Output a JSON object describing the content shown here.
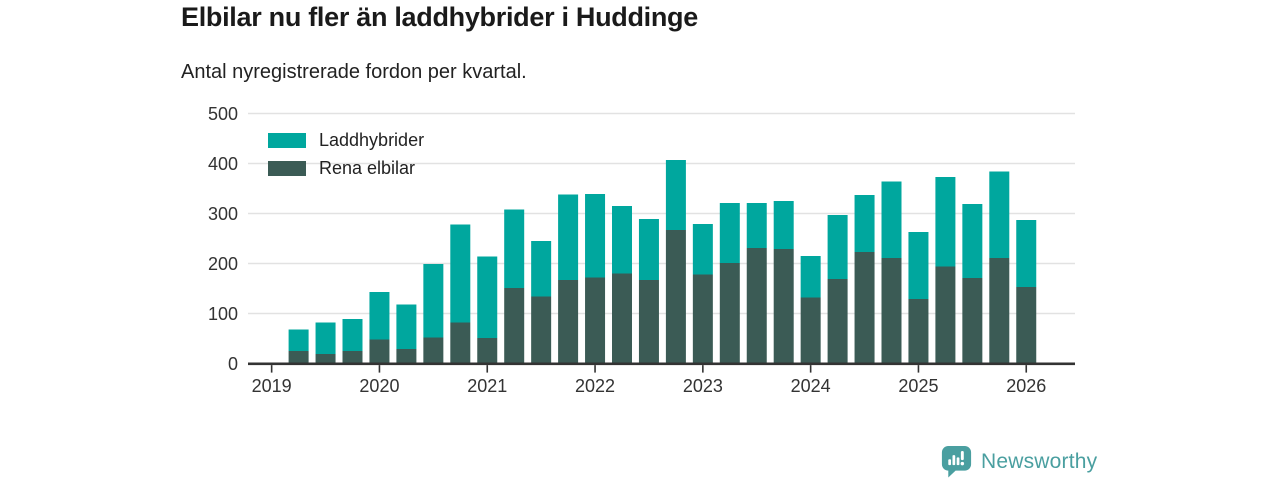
{
  "header": {
    "title": "Elbilar nu fler än laddhybrider i Huddinge",
    "subtitle": "Antal nyregistrerade fordon per kvartal."
  },
  "chart_data": {
    "type": "bar",
    "stacked": true,
    "title": "Elbilar nu fler än laddhybrider i Huddinge",
    "subtitle": "Antal nyregistrerade fordon per kvartal.",
    "xlabel": "",
    "ylabel": "",
    "ylim": [
      0,
      500
    ],
    "y_ticks": [
      0,
      100,
      200,
      300,
      400,
      500
    ],
    "x_tick_labels": [
      "2019",
      "2020",
      "2021",
      "2022",
      "2023",
      "2024",
      "2025",
      "2026"
    ],
    "grid": "horizontal",
    "legend_position": "top-left",
    "categories": [
      "2019-Q1",
      "2019-Q2",
      "2019-Q3",
      "2019-Q4",
      "2020-Q1",
      "2020-Q2",
      "2020-Q3",
      "2020-Q4",
      "2021-Q1",
      "2021-Q2",
      "2021-Q3",
      "2021-Q4",
      "2022-Q1",
      "2022-Q2",
      "2022-Q3",
      "2022-Q4",
      "2023-Q1",
      "2023-Q2",
      "2023-Q3",
      "2023-Q4",
      "2024-Q1",
      "2024-Q2",
      "2024-Q3",
      "2024-Q4",
      "2025-Q1",
      "2025-Q2",
      "2025-Q3",
      "2025-Q4"
    ],
    "stack_order_bottom_to_top": [
      "Rena elbilar",
      "Laddhybrider"
    ],
    "series": [
      {
        "name": "Laddhybrider",
        "color": "#00a79e",
        "values": [
          43,
          63,
          64,
          95,
          89,
          147,
          196,
          163,
          157,
          111,
          171,
          167,
          135,
          122,
          140,
          101,
          120,
          90,
          96,
          83,
          128,
          114,
          153,
          134,
          179,
          148,
          173,
          134
        ]
      },
      {
        "name": "Rena elbilar",
        "color": "#3b5b55",
        "values": [
          25,
          19,
          25,
          48,
          29,
          52,
          82,
          51,
          151,
          134,
          167,
          172,
          180,
          167,
          267,
          178,
          201,
          231,
          229,
          132,
          169,
          223,
          211,
          129,
          194,
          171,
          211,
          153
        ]
      }
    ],
    "totals": [
      68,
      82,
      89,
      143,
      118,
      199,
      278,
      214,
      308,
      245,
      338,
      339,
      315,
      289,
      407,
      279,
      321,
      321,
      325,
      215,
      297,
      337,
      364,
      263,
      373,
      319,
      384,
      287
    ]
  },
  "colors": {
    "laddhybrider": "#00a79e",
    "rena_elbilar": "#3b5b55",
    "gridline": "#e2e2e2",
    "axis": "#333333",
    "tick_label": "#333333",
    "brand": "#4a9fa0"
  },
  "footer": {
    "brand": "Newsworthy"
  }
}
